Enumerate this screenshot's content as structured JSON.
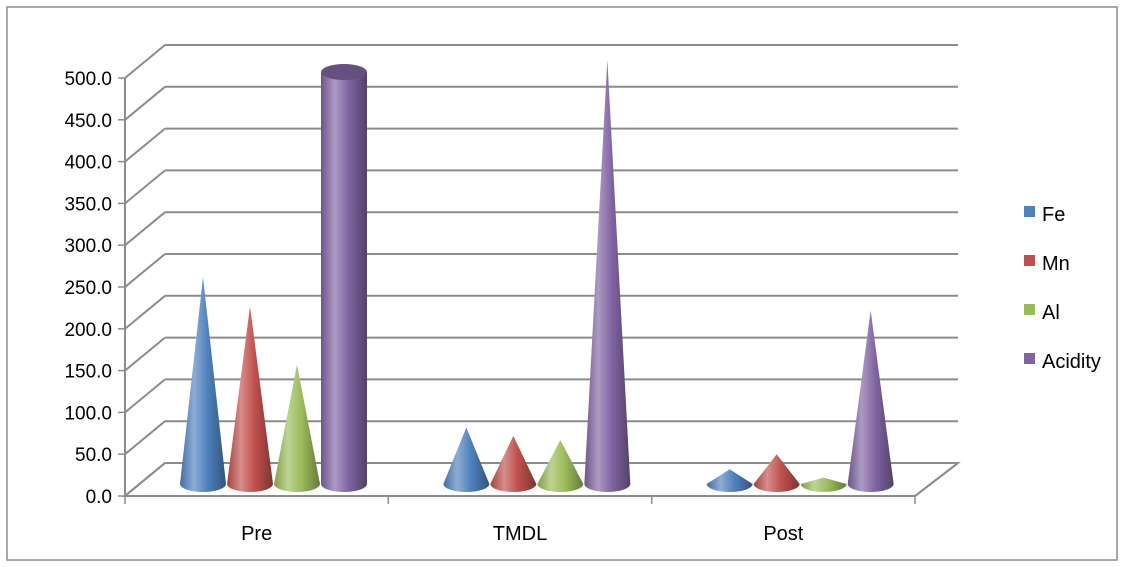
{
  "chart_data": {
    "type": "bar",
    "title": "",
    "xlabel": "",
    "ylabel": "",
    "categories": [
      "Pre",
      "TMDL",
      "Post"
    ],
    "y_tick_labels": [
      "0.0",
      "50.0",
      "100.0",
      "150.0",
      "200.0",
      "250.0",
      "300.0",
      "350.0",
      "400.0",
      "450.0",
      "500.0"
    ],
    "ylim": [
      0,
      500
    ],
    "grid": true,
    "legend_position": "right",
    "series": [
      {
        "name": "Fe",
        "values": [
          250,
          70,
          20
        ],
        "color": "#4f81bd",
        "shape": "cone"
      },
      {
        "name": "Mn",
        "values": [
          215,
          60,
          38
        ],
        "color": "#c0504d",
        "shape": "cone"
      },
      {
        "name": "Al",
        "values": [
          145,
          55,
          10
        ],
        "color": "#9bbb59",
        "shape": "cone"
      },
      {
        "name": "Acidity",
        "values": [
          500,
          510,
          210
        ],
        "color": "#8064a2",
        "shape_by_category": [
          "cylinder",
          "cone",
          "cone"
        ]
      }
    ]
  }
}
